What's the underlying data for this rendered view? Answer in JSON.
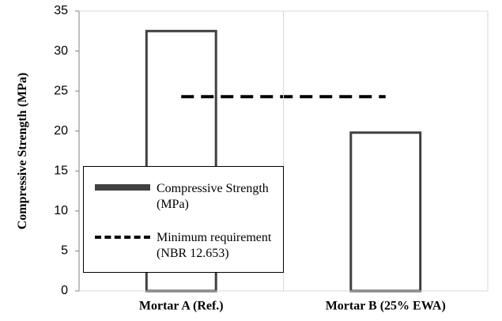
{
  "chart_data": {
    "type": "bar",
    "y_label": "Compressive Strength (MPa)",
    "categories": [
      "Mortar A (Ref.)",
      "Mortar B (25% EWA)"
    ],
    "series": [
      {
        "name": "Compressive Strength (MPa)",
        "type": "bar",
        "color": "#404040",
        "values": [
          32.5,
          19.8
        ]
      },
      {
        "name": "Minimum requirement (NBR 12.653)",
        "type": "line",
        "color": "#000000",
        "values": [
          24.3,
          24.3
        ]
      }
    ],
    "ylim": [
      0,
      35
    ],
    "yticks": [
      0,
      5,
      10,
      15,
      20,
      25,
      30,
      35
    ]
  }
}
